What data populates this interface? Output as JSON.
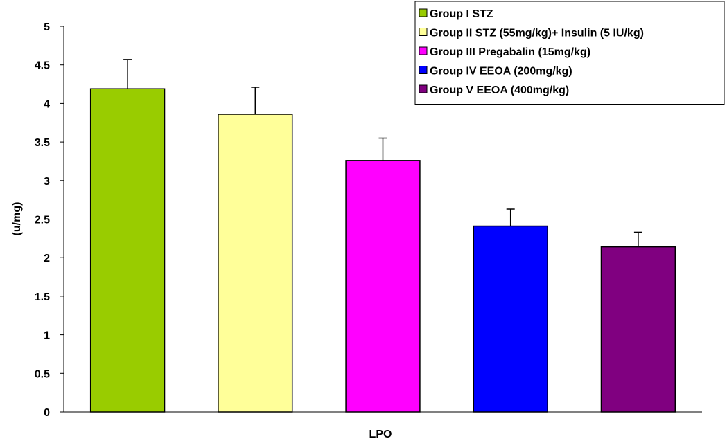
{
  "chart_data": {
    "type": "bar",
    "xlabel": "LPO",
    "ylabel": "(u/mg)",
    "ylim": [
      0,
      5
    ],
    "yticks": [
      "0",
      "0.5",
      "1",
      "1.5",
      "2",
      "2.5",
      "3",
      "3.5",
      "4",
      "4.5",
      "5"
    ],
    "grid": false,
    "legend_position": "top-right",
    "series": [
      {
        "name": "Group I  STZ",
        "value": 4.19,
        "error": 0.38,
        "color": "#99cc00"
      },
      {
        "name": "Group II  STZ (55mg/kg)+ Insulin (5 IU/kg)",
        "value": 3.86,
        "error": 0.35,
        "color": "#ffff99"
      },
      {
        "name": "Group III Pregabalin (15mg/kg)",
        "value": 3.26,
        "error": 0.29,
        "color": "#ff00ff"
      },
      {
        "name": "Group IV EEOA (200mg/kg)",
        "value": 2.41,
        "error": 0.22,
        "color": "#0000ff"
      },
      {
        "name": "Group V  EEOA (400mg/kg)",
        "value": 2.14,
        "error": 0.19,
        "color": "#800080"
      }
    ]
  }
}
